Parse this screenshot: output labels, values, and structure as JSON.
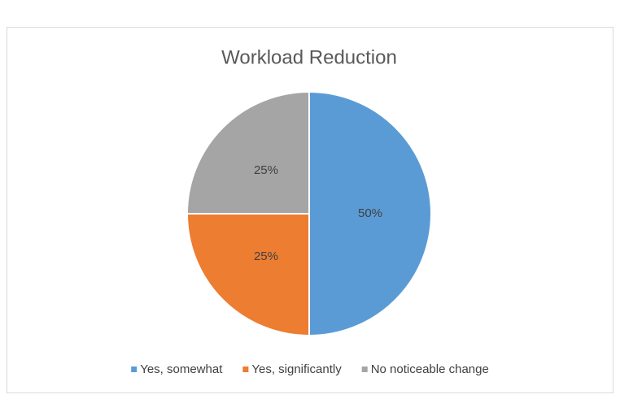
{
  "chart_data": {
    "type": "pie",
    "title": "Workload Reduction",
    "categories": [
      "Yes, somewhat",
      "Yes, significantly",
      "No noticeable change"
    ],
    "values": [
      50,
      25,
      25
    ],
    "value_labels": [
      "50%",
      "25%",
      "25%"
    ],
    "colors": [
      "#5b9bd5",
      "#ed7d31",
      "#a5a5a5"
    ],
    "legend": "bottom"
  }
}
